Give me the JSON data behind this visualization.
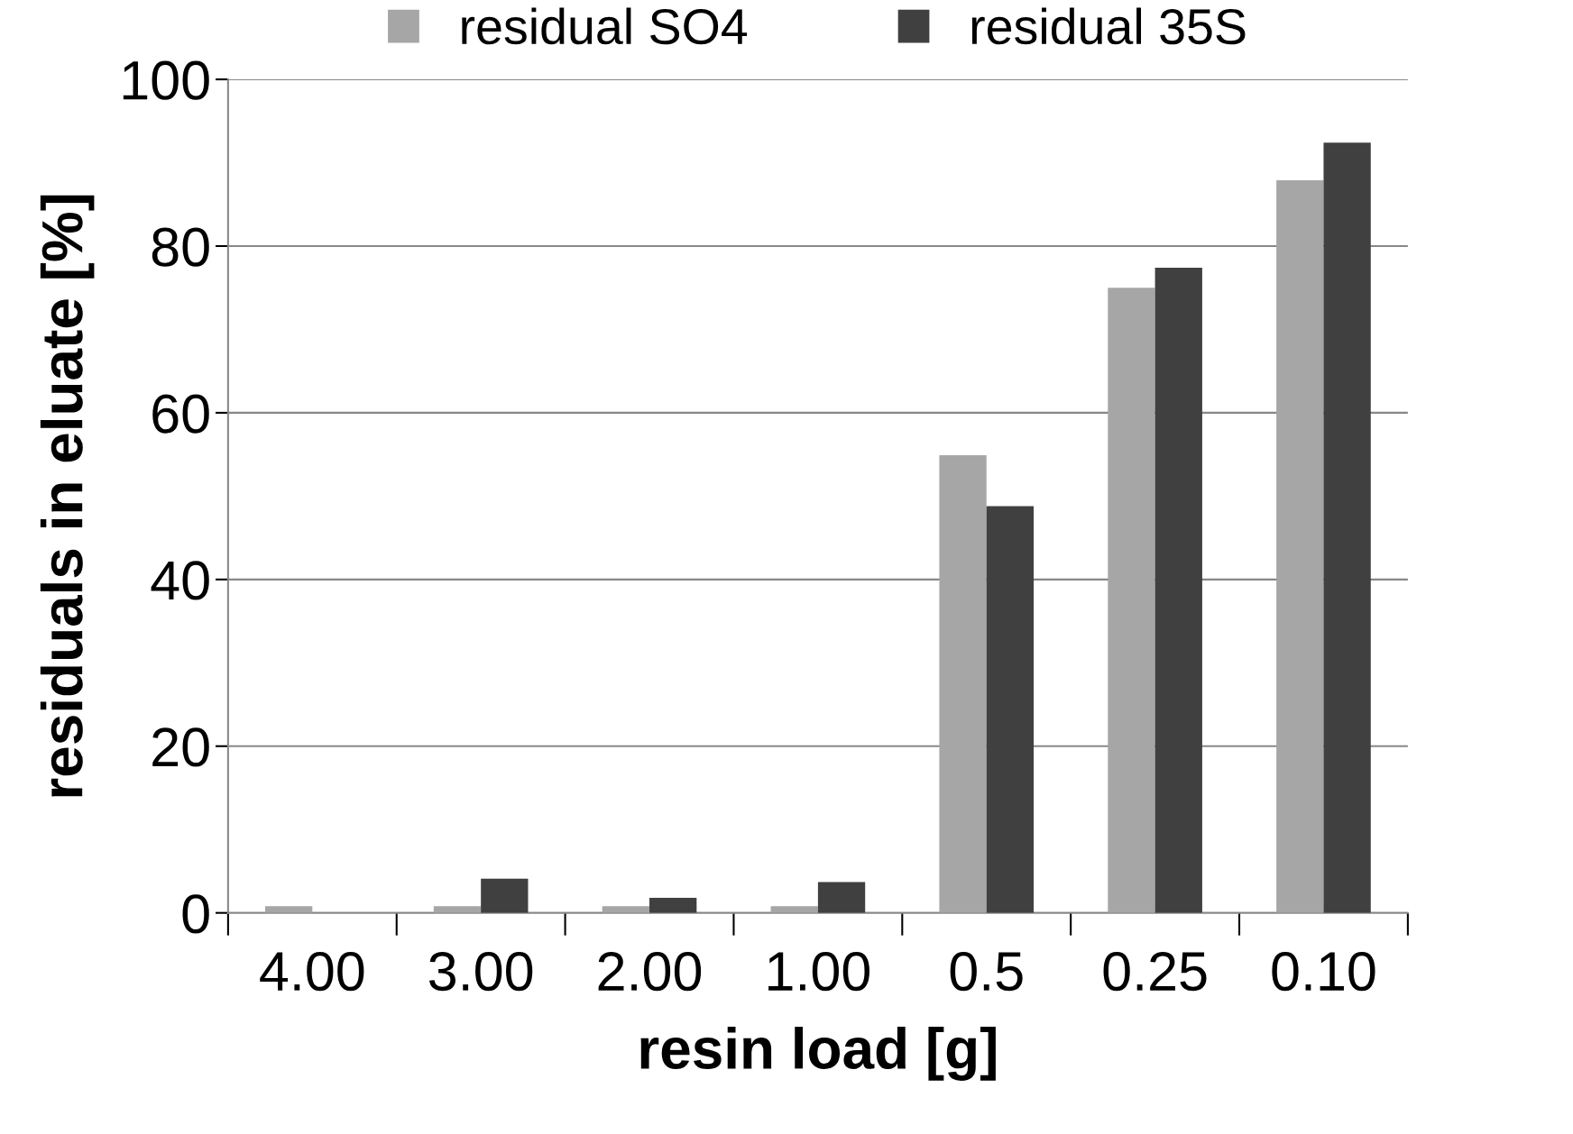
{
  "chart_data": {
    "type": "bar",
    "xlabel": "resin load [g]",
    "ylabel": "residuals in eluate [%]",
    "categories": [
      "4.00",
      "3.00",
      "2.00",
      "1.00",
      "0.5",
      "0.25",
      "0.10"
    ],
    "series": [
      {
        "name": "residual SO4",
        "color": "#a6a6a6",
        "values": [
          0.8,
          0.8,
          0.8,
          0.8,
          54.9,
          75.0,
          87.9
        ]
      },
      {
        "name": "residual 35S",
        "color": "#404040",
        "values": [
          0,
          4.1,
          1.8,
          3.7,
          48.8,
          77.4,
          92.4
        ]
      }
    ],
    "ylim": [
      0,
      100
    ],
    "yticks": [
      0,
      20,
      40,
      60,
      80,
      100
    ],
    "grid": "y",
    "legend": "top"
  }
}
